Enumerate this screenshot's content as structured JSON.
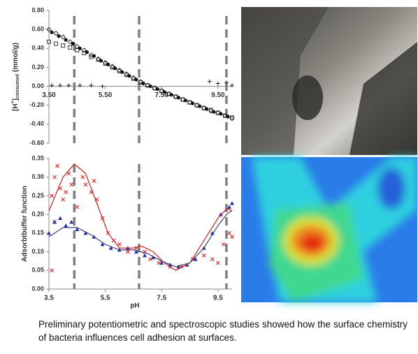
{
  "chart_data": [
    {
      "type": "scatter",
      "y_label": [
        "[H",
        "+",
        "]",
        "consumed",
        " (mmol/g)"
      ],
      "xlim": [
        3.5,
        10
      ],
      "ylim": [
        -0.6,
        0.8
      ],
      "xticks": [
        {
          "value": 3.5,
          "label": "3.50"
        },
        {
          "value": 5.5,
          "label": "5.50"
        },
        {
          "value": 7.5,
          "label": "7.50"
        },
        {
          "value": 9.5,
          "label": "9.50"
        }
      ],
      "yticks": [
        {
          "value": 0.8,
          "label": "0.80"
        },
        {
          "value": 0.6,
          "label": "0.60"
        },
        {
          "value": 0.4,
          "label": "0.40"
        },
        {
          "value": 0.2,
          "label": "0.20"
        },
        {
          "value": 0,
          "label": "0.00"
        },
        {
          "value": -0.2,
          "label": "-0.20"
        },
        {
          "value": -0.4,
          "label": "-0.40"
        },
        {
          "value": -0.6,
          "label": "-0.60"
        }
      ],
      "vlines": [
        4.4,
        6.7,
        9.8
      ],
      "series": [
        {
          "marker": "diamond-open",
          "color": "#222",
          "x": [
            3.5,
            3.75,
            4.0,
            4.25,
            4.5,
            4.75,
            5.0,
            5.25,
            5.5,
            5.75,
            6.0,
            6.25,
            6.5,
            6.75,
            7.0,
            7.25,
            7.5,
            7.75,
            8.0,
            8.25,
            8.5,
            8.75,
            9.0,
            9.25,
            9.5,
            9.75,
            10.0
          ],
          "values": [
            0.6,
            0.56,
            0.52,
            0.47,
            0.42,
            0.38,
            0.33,
            0.29,
            0.25,
            0.21,
            0.17,
            0.13,
            0.09,
            0.05,
            0.01,
            -0.02,
            -0.05,
            -0.08,
            -0.11,
            -0.14,
            -0.17,
            -0.2,
            -0.23,
            -0.26,
            -0.28,
            -0.31,
            -0.34
          ]
        },
        {
          "marker": "square-open",
          "color": "#222",
          "x": [
            3.5,
            3.75,
            4.0,
            4.25,
            4.5,
            4.75,
            5.0,
            5.25,
            5.5,
            5.75,
            6.0,
            6.25,
            6.5,
            6.75,
            7.0,
            7.25,
            7.5,
            7.75,
            8.0,
            8.25,
            8.5,
            8.75,
            9.0,
            9.25,
            9.5,
            9.75,
            10.0
          ],
          "values": [
            0.47,
            0.45,
            0.43,
            0.41,
            0.38,
            0.35,
            0.31,
            0.28,
            0.24,
            0.2,
            0.16,
            0.12,
            0.08,
            0.04,
            0.01,
            -0.02,
            -0.05,
            -0.08,
            -0.11,
            -0.14,
            -0.17,
            -0.2,
            -0.23,
            -0.25,
            -0.28,
            -0.31,
            -0.33
          ]
        },
        {
          "marker": "circle",
          "color": "#111",
          "x": [
            3.6,
            3.85,
            4.1,
            4.35,
            4.6,
            4.85,
            5.1,
            5.35,
            5.6,
            5.85,
            6.1,
            6.35,
            6.6,
            6.85,
            7.1,
            7.35,
            7.6,
            7.85,
            8.1,
            8.35,
            8.6,
            8.85,
            9.1,
            9.35,
            9.6,
            9.85
          ],
          "values": [
            0.57,
            0.53,
            0.49,
            0.45,
            0.4,
            0.36,
            0.32,
            0.27,
            0.23,
            0.19,
            0.15,
            0.11,
            0.07,
            0.03,
            0.0,
            -0.03,
            -0.06,
            -0.09,
            -0.12,
            -0.15,
            -0.18,
            -0.21,
            -0.24,
            -0.27,
            -0.29,
            -0.32
          ]
        },
        {
          "marker": "plus",
          "color": "#222",
          "x": [
            3.6,
            3.9,
            4.2,
            4.6,
            5.0,
            5.4,
            9.2,
            9.5,
            9.8,
            10.0
          ],
          "values": [
            0.01,
            0.01,
            0.01,
            0.01,
            0.01,
            0.0,
            0.05,
            0.03,
            0.04,
            0.01
          ]
        }
      ]
    },
    {
      "type": "scatter",
      "x_label": "pH",
      "y_label": [
        "Adsorbtbuffer function"
      ],
      "xlim": [
        3.5,
        10
      ],
      "ylim": [
        0,
        0.35
      ],
      "xticks": [
        3.5,
        5.5,
        7.5,
        9.5
      ],
      "yticks": [
        {
          "value": 0.35,
          "label": "0.35"
        },
        {
          "value": 0.3,
          "label": "0.30"
        },
        {
          "value": 0.25,
          "label": "0.25"
        },
        {
          "value": 0.2,
          "label": "0.20"
        },
        {
          "value": 0.15,
          "label": "0.15"
        },
        {
          "value": 0.1,
          "label": "0.10"
        },
        {
          "value": 0.05,
          "label": "0.05"
        },
        {
          "value": 0,
          "label": "0.00"
        }
      ],
      "vlines": [
        4.4,
        6.7,
        9.8
      ],
      "series": [
        {
          "marker": "x",
          "color": "#e02020",
          "x": [
            3.6,
            3.7,
            3.8,
            3.9,
            4.0,
            4.1,
            4.2,
            4.3,
            4.5,
            4.7,
            4.8,
            5.0,
            5.1,
            5.2,
            5.4,
            5.6,
            5.8,
            6.0,
            6.3,
            6.6,
            6.9,
            7.1,
            7.4,
            7.8,
            8.2,
            8.6,
            9.0,
            9.3,
            9.5,
            9.7,
            9.9,
            10.0,
            3.6,
            3.7
          ],
          "values": [
            0.25,
            0.3,
            0.33,
            0.27,
            0.24,
            0.26,
            0.31,
            0.28,
            0.22,
            0.3,
            0.28,
            0.26,
            0.29,
            0.24,
            0.19,
            0.15,
            0.13,
            0.12,
            0.1,
            0.11,
            0.1,
            0.08,
            0.07,
            0.06,
            0.06,
            0.08,
            0.09,
            0.08,
            0.07,
            0.12,
            0.15,
            0.14,
            0.05,
            0.18
          ]
        },
        {
          "marker": "triangle",
          "color": "#2030a0",
          "x": [
            3.5,
            3.7,
            3.9,
            4.1,
            4.3,
            4.5,
            4.8,
            5.1,
            5.4,
            5.7,
            6.0,
            6.3,
            6.6,
            6.9,
            7.2,
            7.5,
            7.8,
            8.1,
            8.4,
            8.7,
            9.0,
            9.3,
            9.6,
            9.9,
            10.0
          ],
          "values": [
            0.15,
            0.18,
            0.19,
            0.17,
            0.18,
            0.16,
            0.15,
            0.14,
            0.12,
            0.11,
            0.105,
            0.11,
            0.1,
            0.09,
            0.085,
            0.07,
            0.065,
            0.06,
            0.065,
            0.08,
            0.11,
            0.15,
            0.2,
            0.22,
            0.23
          ]
        },
        {
          "marker": "line",
          "color": "#d02020",
          "x": [
            3.5,
            4.0,
            4.4,
            4.8,
            5.2,
            5.6,
            6.0,
            6.5,
            6.8,
            7.2,
            7.6,
            8.0,
            8.5,
            9.0,
            9.5,
            9.8,
            10.0
          ],
          "values": [
            0.21,
            0.3,
            0.335,
            0.31,
            0.23,
            0.15,
            0.11,
            0.11,
            0.115,
            0.1,
            0.07,
            0.05,
            0.07,
            0.13,
            0.19,
            0.215,
            0.21
          ]
        },
        {
          "marker": "line",
          "color": "#404080",
          "x": [
            3.5,
            4.0,
            4.5,
            5.0,
            5.5,
            6.0,
            6.5,
            7.0,
            7.5,
            8.0,
            8.5,
            9.0,
            9.5,
            9.8,
            10.0
          ],
          "values": [
            0.14,
            0.165,
            0.165,
            0.145,
            0.12,
            0.105,
            0.105,
            0.095,
            0.075,
            0.06,
            0.07,
            0.11,
            0.17,
            0.2,
            0.21
          ]
        }
      ]
    }
  ],
  "caption": "Preliminary potentiometric and spectroscopic studies showed how the surface chemistry of bacteria influences cell adhesion at surfaces."
}
